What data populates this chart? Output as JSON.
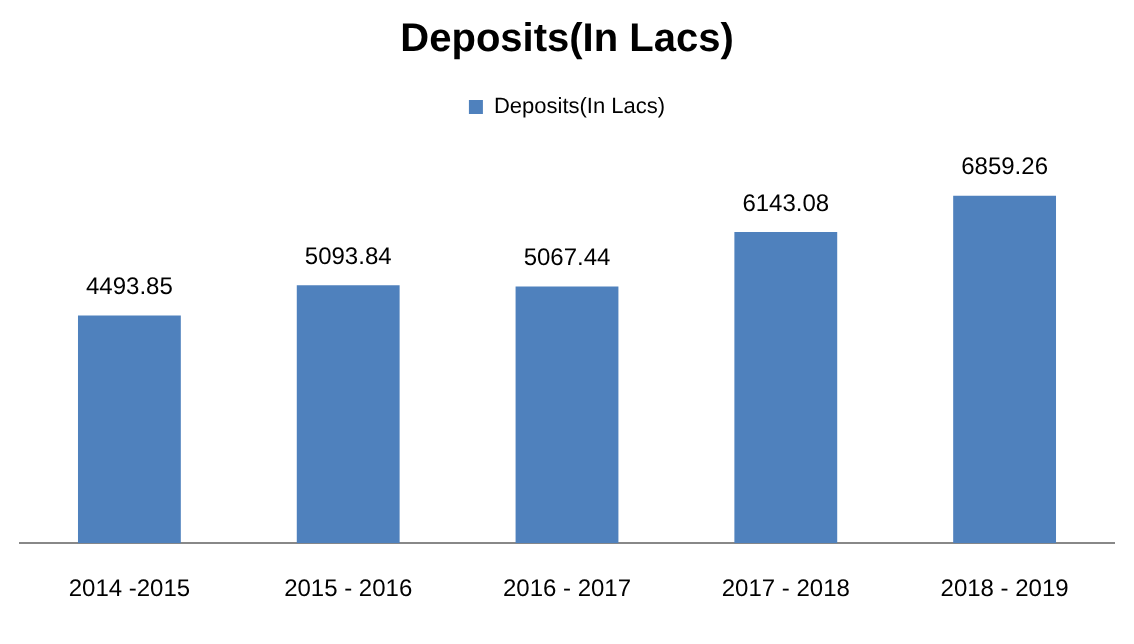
{
  "chart_data": {
    "type": "bar",
    "title": "Deposits(In Lacs)",
    "categories": [
      "2014 -2015",
      "2015 - 2016",
      "2016 - 2017",
      "2017 - 2018",
      "2018 - 2019"
    ],
    "series": [
      {
        "name": "Deposits(In Lacs)",
        "color": "#4f81bd",
        "values": [
          4493.85,
          5093.84,
          5067.44,
          6143.08,
          6859.26
        ]
      }
    ],
    "data_labels": true,
    "legend": "top",
    "grid": false,
    "tick_labels": "x"
  }
}
